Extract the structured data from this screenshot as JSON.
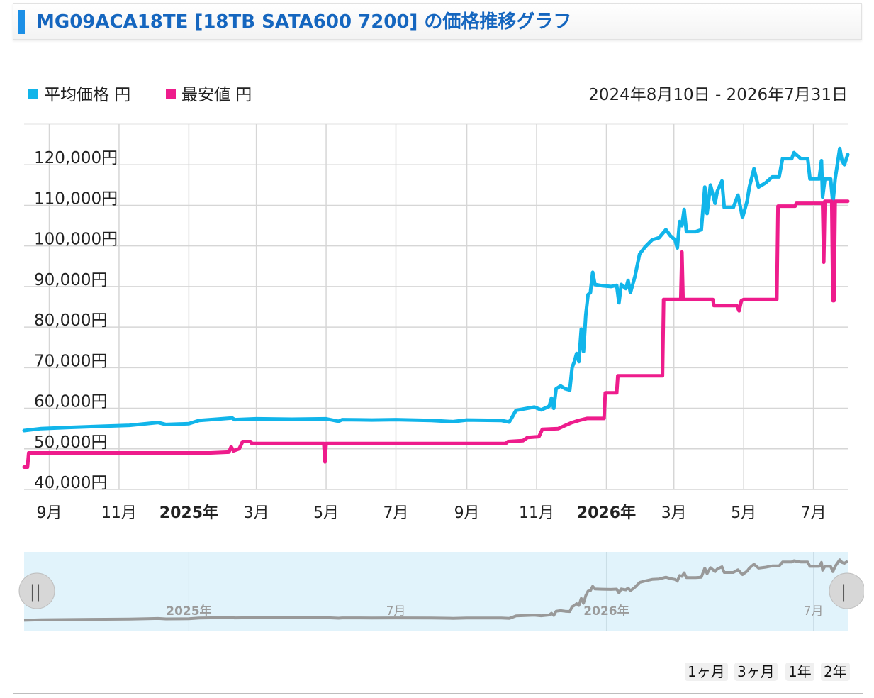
{
  "header": {
    "title": "MG09ACA18TE [18TB SATA600 7200] の価格推移グラフ"
  },
  "legend": [
    {
      "label": "平均価格 円",
      "color": "#11b5ea"
    },
    {
      "label": "最安値 円",
      "color": "#ee1c8c"
    }
  ],
  "date_range": "2024年8月10日 - 2026年7月31日",
  "range_buttons": [
    "1ヶ月",
    "3ヶ月",
    "1年",
    "2年"
  ],
  "navigator": {
    "labels": [
      "2025年",
      "7月",
      "2026年",
      "7月"
    ],
    "handle_left": "||",
    "handle_right": "|"
  },
  "chart_data": {
    "type": "line",
    "x_range": [
      "2024-08-10",
      "2026-07-31"
    ],
    "ylim": [
      40000,
      130000
    ],
    "y_ticks": [
      40000,
      50000,
      60000,
      70000,
      80000,
      90000,
      100000,
      110000,
      120000
    ],
    "y_tick_labels": [
      "40,000円",
      "50,000円",
      "60,000円",
      "70,000円",
      "80,000円",
      "90,000円",
      "100,000円",
      "110,000円",
      "120,000円"
    ],
    "x_ticks": [
      {
        "date": "2024-09-01",
        "label": "9月",
        "bold": false
      },
      {
        "date": "2024-11-01",
        "label": "11月",
        "bold": false
      },
      {
        "date": "2025-01-01",
        "label": "2025年",
        "bold": true
      },
      {
        "date": "2025-03-01",
        "label": "3月",
        "bold": false
      },
      {
        "date": "2025-05-01",
        "label": "5月",
        "bold": false
      },
      {
        "date": "2025-07-01",
        "label": "7月",
        "bold": false
      },
      {
        "date": "2025-09-01",
        "label": "9月",
        "bold": false
      },
      {
        "date": "2025-11-01",
        "label": "11月",
        "bold": false
      },
      {
        "date": "2026-01-01",
        "label": "2026年",
        "bold": true
      },
      {
        "date": "2026-03-01",
        "label": "3月",
        "bold": false
      },
      {
        "date": "2026-05-01",
        "label": "5月",
        "bold": false
      },
      {
        "date": "2026-07-01",
        "label": "7月",
        "bold": false
      }
    ],
    "grid": true,
    "legend_position": "top-left",
    "series": [
      {
        "name": "平均価格",
        "color": "#11b5ea",
        "points": [
          [
            "2024-08-10",
            54500
          ],
          [
            "2024-08-25",
            55000
          ],
          [
            "2024-09-20",
            55300
          ],
          [
            "2024-10-20",
            55600
          ],
          [
            "2024-11-10",
            55800
          ],
          [
            "2024-11-25",
            56200
          ],
          [
            "2024-12-05",
            56500
          ],
          [
            "2024-12-12",
            56000
          ],
          [
            "2025-01-01",
            56200
          ],
          [
            "2025-01-10",
            57000
          ],
          [
            "2025-01-25",
            57300
          ],
          [
            "2025-02-08",
            57600
          ],
          [
            "2025-02-10",
            57200
          ],
          [
            "2025-03-01",
            57400
          ],
          [
            "2025-04-01",
            57300
          ],
          [
            "2025-05-01",
            57400
          ],
          [
            "2025-05-12",
            56800
          ],
          [
            "2025-05-15",
            57200
          ],
          [
            "2025-06-10",
            57100
          ],
          [
            "2025-07-01",
            57200
          ],
          [
            "2025-08-01",
            57000
          ],
          [
            "2025-08-20",
            56700
          ],
          [
            "2025-09-01",
            57100
          ],
          [
            "2025-10-01",
            57000
          ],
          [
            "2025-10-08",
            56600
          ],
          [
            "2025-10-10",
            57500
          ],
          [
            "2025-10-14",
            59500
          ],
          [
            "2025-10-20",
            59800
          ],
          [
            "2025-10-30",
            60300
          ],
          [
            "2025-11-05",
            59600
          ],
          [
            "2025-11-12",
            60500
          ],
          [
            "2025-11-14",
            62500
          ],
          [
            "2025-11-16",
            60000
          ],
          [
            "2025-11-18",
            64800
          ],
          [
            "2025-11-22",
            65500
          ],
          [
            "2025-11-26",
            64800
          ],
          [
            "2025-11-30",
            64500
          ],
          [
            "2025-12-02",
            70000
          ],
          [
            "2025-12-04",
            71500
          ],
          [
            "2025-12-06",
            73500
          ],
          [
            "2025-12-08",
            71500
          ],
          [
            "2025-12-10",
            79500
          ],
          [
            "2025-12-12",
            74000
          ],
          [
            "2025-12-14",
            83000
          ],
          [
            "2025-12-16",
            88000
          ],
          [
            "2025-12-18",
            88500
          ],
          [
            "2025-12-20",
            93500
          ],
          [
            "2025-12-22",
            90500
          ],
          [
            "2025-12-28",
            90200
          ],
          [
            "2026-01-05",
            90000
          ],
          [
            "2026-01-10",
            90300
          ],
          [
            "2026-01-12",
            86000
          ],
          [
            "2026-01-14",
            90500
          ],
          [
            "2026-01-18",
            89500
          ],
          [
            "2026-01-20",
            91500
          ],
          [
            "2026-01-22",
            88500
          ],
          [
            "2026-01-26",
            92500
          ],
          [
            "2026-01-30",
            98000
          ],
          [
            "2026-02-04",
            99800
          ],
          [
            "2026-02-10",
            101500
          ],
          [
            "2026-02-16",
            102000
          ],
          [
            "2026-02-22",
            104000
          ],
          [
            "2026-02-26",
            102500
          ],
          [
            "2026-03-02",
            101500
          ],
          [
            "2026-03-04",
            99500
          ],
          [
            "2026-03-06",
            106000
          ],
          [
            "2026-03-08",
            105000
          ],
          [
            "2026-03-10",
            109000
          ],
          [
            "2026-03-12",
            103500
          ],
          [
            "2026-03-20",
            103500
          ],
          [
            "2026-03-25",
            104000
          ],
          [
            "2026-03-28",
            114500
          ],
          [
            "2026-03-30",
            108000
          ],
          [
            "2026-04-02",
            115000
          ],
          [
            "2026-04-06",
            110500
          ],
          [
            "2026-04-08",
            113500
          ],
          [
            "2026-04-12",
            116000
          ],
          [
            "2026-04-14",
            109500
          ],
          [
            "2026-04-22",
            109500
          ],
          [
            "2026-04-26",
            112500
          ],
          [
            "2026-04-30",
            107000
          ],
          [
            "2026-05-04",
            111000
          ],
          [
            "2026-05-06",
            114500
          ],
          [
            "2026-05-10",
            119000
          ],
          [
            "2026-05-14",
            114500
          ],
          [
            "2026-05-20",
            115500
          ],
          [
            "2026-05-26",
            117000
          ],
          [
            "2026-06-01",
            117000
          ],
          [
            "2026-06-04",
            121500
          ],
          [
            "2026-06-12",
            121500
          ],
          [
            "2026-06-14",
            123000
          ],
          [
            "2026-06-20",
            121500
          ],
          [
            "2026-06-26",
            121500
          ],
          [
            "2026-06-28",
            116500
          ],
          [
            "2026-07-06",
            116500
          ],
          [
            "2026-07-08",
            121000
          ],
          [
            "2026-07-09",
            112000
          ],
          [
            "2026-07-11",
            116500
          ],
          [
            "2026-07-16",
            116500
          ],
          [
            "2026-07-18",
            110500
          ],
          [
            "2026-07-20",
            116500
          ],
          [
            "2026-07-24",
            124000
          ],
          [
            "2026-07-26",
            121000
          ],
          [
            "2026-07-28",
            120000
          ],
          [
            "2026-07-31",
            122500
          ]
        ]
      },
      {
        "name": "最安値",
        "color": "#ee1c8c",
        "points": [
          [
            "2024-08-10",
            45500
          ],
          [
            "2024-08-13",
            45500
          ],
          [
            "2024-08-14",
            49000
          ],
          [
            "2025-01-20",
            49000
          ],
          [
            "2025-02-05",
            49200
          ],
          [
            "2025-02-07",
            50500
          ],
          [
            "2025-02-09",
            49500
          ],
          [
            "2025-02-14",
            50000
          ],
          [
            "2025-02-17",
            51800
          ],
          [
            "2025-02-24",
            51800
          ],
          [
            "2025-02-25",
            51300
          ],
          [
            "2025-04-29",
            51300
          ],
          [
            "2025-04-30",
            46800
          ],
          [
            "2025-05-01",
            51300
          ],
          [
            "2025-10-05",
            51300
          ],
          [
            "2025-10-07",
            51800
          ],
          [
            "2025-10-20",
            52000
          ],
          [
            "2025-10-24",
            52800
          ],
          [
            "2025-11-03",
            53000
          ],
          [
            "2025-11-06",
            54800
          ],
          [
            "2025-11-20",
            55000
          ],
          [
            "2025-11-28",
            56000
          ],
          [
            "2025-12-02",
            56500
          ],
          [
            "2025-12-08",
            57000
          ],
          [
            "2025-12-15",
            57500
          ],
          [
            "2025-12-30",
            57500
          ],
          [
            "2025-12-31",
            63800
          ],
          [
            "2026-01-10",
            63800
          ],
          [
            "2026-01-11",
            68000
          ],
          [
            "2026-02-19",
            68000
          ],
          [
            "2026-02-20",
            86800
          ],
          [
            "2026-03-07",
            86800
          ],
          [
            "2026-03-08",
            98500
          ],
          [
            "2026-03-09",
            86800
          ],
          [
            "2026-04-04",
            86800
          ],
          [
            "2026-04-05",
            85300
          ],
          [
            "2026-04-25",
            85300
          ],
          [
            "2026-04-27",
            84000
          ],
          [
            "2026-04-29",
            86500
          ],
          [
            "2026-05-01",
            86800
          ],
          [
            "2026-05-30",
            86800
          ],
          [
            "2026-05-31",
            109800
          ],
          [
            "2026-06-15",
            109800
          ],
          [
            "2026-06-16",
            110500
          ],
          [
            "2026-07-09",
            110500
          ],
          [
            "2026-07-10",
            96000
          ],
          [
            "2026-07-11",
            111000
          ],
          [
            "2026-07-17",
            111000
          ],
          [
            "2026-07-18",
            86500
          ],
          [
            "2026-07-19",
            86500
          ],
          [
            "2026-07-20",
            111000
          ],
          [
            "2026-07-31",
            111000
          ]
        ]
      }
    ]
  }
}
